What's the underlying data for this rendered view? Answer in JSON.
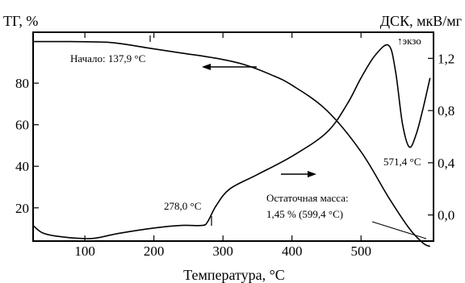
{
  "chart_data": {
    "type": "line",
    "x_axis": {
      "label": "Температура, °С",
      "range": [
        25,
        605
      ],
      "ticks": [
        100,
        200,
        300,
        400,
        500
      ]
    },
    "y_left": {
      "label": "ТГ, %",
      "range": [
        4,
        104.5
      ],
      "ticks": [
        20,
        40,
        60,
        80
      ]
    },
    "y_right": {
      "label": "ДСК, мкВ/мг",
      "range": [
        -0.2,
        1.4
      ],
      "ticks": [
        "1,2",
        "0,8",
        "0,4",
        "0,0"
      ],
      "tick_values": [
        1.2,
        0.8,
        0.4,
        0.0
      ]
    },
    "grid": false,
    "series": [
      {
        "id": "tg",
        "axis": "left",
        "x": [
          25,
          80,
          140,
          190,
          240,
          290,
          330,
          370,
          400,
          450,
          500,
          540,
          570,
          590,
          600
        ],
        "y": [
          100,
          100,
          99.5,
          97,
          94.5,
          92,
          89,
          84,
          79,
          67,
          47,
          25,
          10,
          3,
          1.45
        ]
      },
      {
        "id": "dsc",
        "axis": "right",
        "x": [
          25,
          40,
          70,
          110,
          150,
          200,
          240,
          270,
          278,
          290,
          310,
          350,
          400,
          450,
          480,
          500,
          520,
          540,
          550,
          560,
          570,
          580,
          590,
          600
        ],
        "y": [
          -0.08,
          -0.14,
          -0.17,
          -0.18,
          -0.14,
          -0.1,
          -0.08,
          -0.08,
          -0.05,
          0.07,
          0.2,
          0.31,
          0.45,
          0.63,
          0.85,
          1.05,
          1.22,
          1.3,
          1.1,
          0.7,
          0.52,
          0.62,
          0.82,
          1.05
        ]
      }
    ],
    "annotations": [
      {
        "id": "onset",
        "text": "Начало: 137,9 °С",
        "x": 137.9
      },
      {
        "id": "peak278",
        "text": "278,0 °С",
        "x": 278.0
      },
      {
        "id": "peak571",
        "text": "571,4 °С",
        "x": 571.4
      },
      {
        "id": "residual1",
        "text": "Остаточная масса:"
      },
      {
        "id": "residual2",
        "text": "1,45 % (599,4 °С)"
      },
      {
        "id": "exo",
        "text": "↑экзо"
      }
    ]
  }
}
